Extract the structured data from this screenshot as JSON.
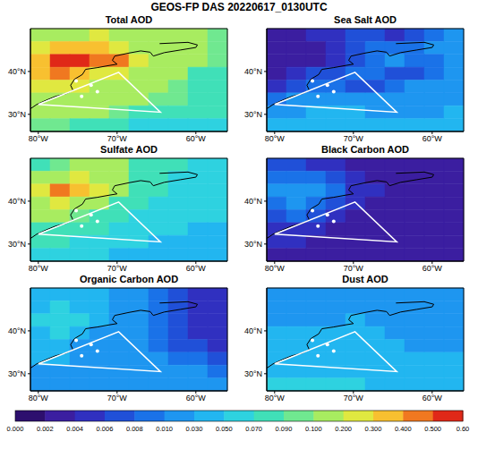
{
  "title": "GEOS-FP DAS 20220617_0130UTC",
  "map": {
    "xlim": [
      -81,
      -56
    ],
    "ylim": [
      26,
      50
    ],
    "xticks": [
      {
        "value": -80,
        "label": "80°W"
      },
      {
        "value": -70,
        "label": "70°W"
      },
      {
        "value": -60,
        "label": "60°W"
      }
    ],
    "yticks": [
      {
        "value": 30,
        "label": "30°N"
      },
      {
        "value": 40,
        "label": "40°N"
      }
    ],
    "lon_edges": [
      -81,
      -78.5,
      -76,
      -73.5,
      -71,
      -68.5,
      -66,
      -63.5,
      -61,
      -58.5,
      -56
    ],
    "lat_edges": [
      50,
      47,
      44,
      41,
      38,
      35,
      32,
      29,
      26
    ],
    "coastline": [
      [
        -81,
        31.3
      ],
      [
        -80.2,
        32.3
      ],
      [
        -79,
        33.3
      ],
      [
        -77.8,
        34.2
      ],
      [
        -76.5,
        34.8
      ],
      [
        -75.6,
        35.6
      ],
      [
        -75.9,
        36.8
      ],
      [
        -75.4,
        38.2
      ],
      [
        -74.4,
        39.3
      ],
      [
        -74,
        40.5
      ],
      [
        -72.5,
        40.9
      ],
      [
        -71,
        41.4
      ],
      [
        -70,
        41.7
      ],
      [
        -70.6,
        42.6
      ],
      [
        -70.3,
        43.6
      ],
      [
        -68.5,
        44.3
      ],
      [
        -67,
        44.8
      ],
      [
        -65.8,
        44.5
      ],
      [
        -65.4,
        43.6
      ],
      [
        -64,
        44.4
      ],
      [
        -62,
        45
      ],
      [
        -60,
        45.6
      ],
      [
        -59.8,
        46.2
      ],
      [
        -61,
        46.8
      ],
      [
        -64.6,
        46.5
      ]
    ],
    "track": [
      [
        -80,
        32.3
      ],
      [
        -69.8,
        39.8
      ],
      [
        -64.5,
        30.5
      ],
      [
        -80,
        32.3
      ]
    ],
    "waypoints": [
      [
        -75.2,
        37.8
      ],
      [
        -73.3,
        36.8
      ],
      [
        -72.5,
        35.3
      ],
      [
        -74.5,
        34.2
      ]
    ]
  },
  "chart_data": [
    {
      "type": "heatmap",
      "title": "Total AOD",
      "cells": [
        [
          0.15,
          0.15,
          0.18,
          0.2,
          0.15,
          0.12,
          0.1,
          0.12,
          0.1,
          0.09
        ],
        [
          0.25,
          0.3,
          0.35,
          0.3,
          0.2,
          0.15,
          0.12,
          0.1,
          0.1,
          0.09
        ],
        [
          0.35,
          0.55,
          0.55,
          0.45,
          0.4,
          0.2,
          0.15,
          0.12,
          0.1,
          0.09
        ],
        [
          0.3,
          0.45,
          0.35,
          0.25,
          0.2,
          0.15,
          0.12,
          0.1,
          0.08,
          0.08
        ],
        [
          0.2,
          0.25,
          0.2,
          0.15,
          0.12,
          0.1,
          0.1,
          0.09,
          0.08,
          0.08
        ],
        [
          0.15,
          0.15,
          0.12,
          0.12,
          0.1,
          0.1,
          0.09,
          0.09,
          0.08,
          0.07
        ],
        [
          0.12,
          0.12,
          0.1,
          0.1,
          0.09,
          0.08,
          0.08,
          0.08,
          0.07,
          0.07
        ],
        [
          0.09,
          0.09,
          0.08,
          0.08,
          0.07,
          0.06,
          0.06,
          0.06,
          0.06,
          0.06
        ]
      ]
    },
    {
      "type": "heatmap",
      "title": "Sea Salt AOD",
      "cells": [
        [
          0.003,
          0.003,
          0.004,
          0.005,
          0.006,
          0.006,
          0.005,
          0.006,
          0.008,
          0.01
        ],
        [
          0.002,
          0.002,
          0.003,
          0.004,
          0.006,
          0.008,
          0.008,
          0.008,
          0.01,
          0.012
        ],
        [
          0.002,
          0.002,
          0.003,
          0.004,
          0.006,
          0.008,
          0.01,
          0.008,
          0.008,
          0.01
        ],
        [
          0.003,
          0.004,
          0.006,
          0.006,
          0.008,
          0.008,
          0.006,
          0.006,
          0.008,
          0.01
        ],
        [
          0.005,
          0.006,
          0.008,
          0.008,
          0.006,
          0.006,
          0.008,
          0.01,
          0.012,
          0.015
        ],
        [
          0.008,
          0.01,
          0.015,
          0.02,
          0.02,
          0.015,
          0.012,
          0.015,
          0.02,
          0.02
        ],
        [
          0.02,
          0.025,
          0.03,
          0.035,
          0.03,
          0.025,
          0.02,
          0.02,
          0.025,
          0.03
        ],
        [
          0.035,
          0.04,
          0.04,
          0.045,
          0.04,
          0.035,
          0.03,
          0.03,
          0.035,
          0.04
        ]
      ]
    },
    {
      "type": "heatmap",
      "title": "Sulfate AOD",
      "cells": [
        [
          0.08,
          0.09,
          0.1,
          0.12,
          0.1,
          0.08,
          0.07,
          0.07,
          0.06,
          0.06
        ],
        [
          0.12,
          0.15,
          0.2,
          0.15,
          0.1,
          0.08,
          0.07,
          0.06,
          0.06,
          0.05
        ],
        [
          0.2,
          0.4,
          0.35,
          0.25,
          0.15,
          0.08,
          0.07,
          0.06,
          0.05,
          0.05
        ],
        [
          0.15,
          0.25,
          0.15,
          0.1,
          0.08,
          0.07,
          0.06,
          0.05,
          0.05,
          0.05
        ],
        [
          0.1,
          0.12,
          0.09,
          0.08,
          0.07,
          0.06,
          0.05,
          0.05,
          0.05,
          0.05
        ],
        [
          0.08,
          0.08,
          0.07,
          0.07,
          0.06,
          0.06,
          0.05,
          0.05,
          0.045,
          0.045
        ],
        [
          0.07,
          0.07,
          0.06,
          0.06,
          0.05,
          0.05,
          0.045,
          0.045,
          0.04,
          0.04
        ],
        [
          0.06,
          0.06,
          0.05,
          0.05,
          0.045,
          0.04,
          0.04,
          0.04,
          0.04,
          0.04
        ]
      ]
    },
    {
      "type": "heatmap",
      "title": "Black Carbon AOD",
      "cells": [
        [
          0.006,
          0.006,
          0.005,
          0.004,
          0.003,
          0.003,
          0.003,
          0.002,
          0.002,
          0.002
        ],
        [
          0.008,
          0.009,
          0.008,
          0.006,
          0.004,
          0.003,
          0.003,
          0.002,
          0.002,
          0.002
        ],
        [
          0.01,
          0.015,
          0.012,
          0.008,
          0.005,
          0.004,
          0.003,
          0.003,
          0.002,
          0.002
        ],
        [
          0.009,
          0.012,
          0.009,
          0.006,
          0.004,
          0.003,
          0.003,
          0.002,
          0.002,
          0.002
        ],
        [
          0.007,
          0.008,
          0.006,
          0.004,
          0.003,
          0.003,
          0.002,
          0.002,
          0.002,
          0.002
        ],
        [
          0.005,
          0.005,
          0.004,
          0.003,
          0.003,
          0.002,
          0.002,
          0.002,
          0.002,
          0.002
        ],
        [
          0.004,
          0.004,
          0.003,
          0.003,
          0.002,
          0.002,
          0.002,
          0.002,
          0.002,
          0.002
        ],
        [
          0.003,
          0.003,
          0.003,
          0.002,
          0.002,
          0.002,
          0.002,
          0.002,
          0.002,
          0.002
        ]
      ]
    },
    {
      "type": "heatmap",
      "title": "Organic Carbon AOD",
      "cells": [
        [
          0.04,
          0.04,
          0.035,
          0.03,
          0.02,
          0.012,
          0.008,
          0.006,
          0.005,
          0.005
        ],
        [
          0.045,
          0.05,
          0.04,
          0.03,
          0.02,
          0.012,
          0.008,
          0.006,
          0.005,
          0.004
        ],
        [
          0.05,
          0.06,
          0.05,
          0.035,
          0.02,
          0.012,
          0.008,
          0.006,
          0.005,
          0.004
        ],
        [
          0.04,
          0.05,
          0.035,
          0.025,
          0.015,
          0.01,
          0.008,
          0.006,
          0.005,
          0.004
        ],
        [
          0.035,
          0.035,
          0.025,
          0.02,
          0.015,
          0.01,
          0.008,
          0.007,
          0.006,
          0.005
        ],
        [
          0.03,
          0.03,
          0.025,
          0.02,
          0.015,
          0.012,
          0.01,
          0.009,
          0.008,
          0.007
        ],
        [
          0.025,
          0.025,
          0.02,
          0.02,
          0.015,
          0.012,
          0.012,
          0.01,
          0.01,
          0.009
        ],
        [
          0.02,
          0.02,
          0.02,
          0.018,
          0.015,
          0.012,
          0.012,
          0.012,
          0.01,
          0.01
        ]
      ]
    },
    {
      "type": "heatmap",
      "title": "Dust AOD",
      "cells": [
        [
          0.015,
          0.015,
          0.018,
          0.02,
          0.02,
          0.02,
          0.018,
          0.015,
          0.015,
          0.015
        ],
        [
          0.02,
          0.02,
          0.02,
          0.025,
          0.025,
          0.02,
          0.02,
          0.018,
          0.015,
          0.015
        ],
        [
          0.025,
          0.025,
          0.025,
          0.025,
          0.03,
          0.025,
          0.02,
          0.02,
          0.018,
          0.018
        ],
        [
          0.03,
          0.03,
          0.03,
          0.03,
          0.03,
          0.03,
          0.025,
          0.02,
          0.02,
          0.02
        ],
        [
          0.035,
          0.035,
          0.035,
          0.035,
          0.035,
          0.03,
          0.03,
          0.025,
          0.025,
          0.025
        ],
        [
          0.04,
          0.04,
          0.04,
          0.04,
          0.04,
          0.035,
          0.035,
          0.03,
          0.03,
          0.03
        ],
        [
          0.045,
          0.045,
          0.045,
          0.045,
          0.045,
          0.04,
          0.04,
          0.035,
          0.035,
          0.035
        ],
        [
          0.05,
          0.05,
          0.05,
          0.05,
          0.05,
          0.045,
          0.045,
          0.04,
          0.04,
          0.04
        ]
      ]
    }
  ],
  "colorbar": {
    "range": [
      0,
      0.6
    ],
    "ticks": [
      {
        "value": 0,
        "label": "0.000"
      },
      {
        "value": 0.002,
        "label": "0.002"
      },
      {
        "value": 0.004,
        "label": "0.004"
      },
      {
        "value": 0.006,
        "label": "0.006"
      },
      {
        "value": 0.008,
        "label": "0.008"
      },
      {
        "value": 0.01,
        "label": "0.010"
      },
      {
        "value": 0.03,
        "label": "0.030"
      },
      {
        "value": 0.05,
        "label": "0.050"
      },
      {
        "value": 0.07,
        "label": "0.070"
      },
      {
        "value": 0.09,
        "label": "0.090"
      },
      {
        "value": 0.1,
        "label": "0.100"
      },
      {
        "value": 0.2,
        "label": "0.200"
      },
      {
        "value": 0.3,
        "label": "0.300"
      },
      {
        "value": 0.4,
        "label": "0.400"
      },
      {
        "value": 0.5,
        "label": "0.500"
      },
      {
        "value": 0.6,
        "label": "0.60"
      }
    ],
    "colors": [
      "#2d0f6e",
      "#3b1ea0",
      "#3030c0",
      "#2050d8",
      "#1a72e8",
      "#1e96f0",
      "#22b6f0",
      "#2ed2e0",
      "#40e0b8",
      "#70e890",
      "#a8ec60",
      "#e0e840",
      "#f8c030",
      "#f07820",
      "#e02818"
    ]
  }
}
